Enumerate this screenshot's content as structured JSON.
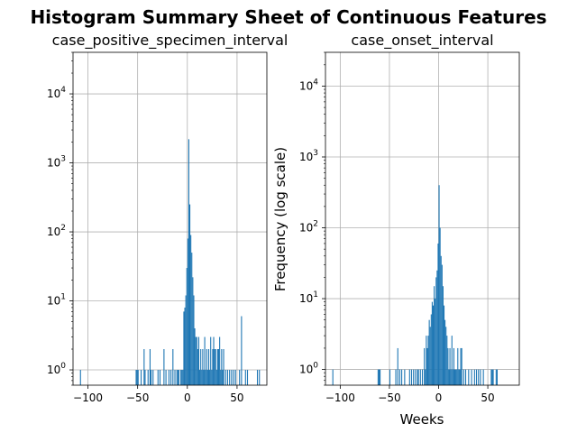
{
  "figure": {
    "suptitle": "Histogram Summary Sheet of Continuous Features",
    "ylabel": "Frequency (log scale)",
    "xlabel": "Weeks"
  },
  "chart_data": [
    {
      "type": "histogram",
      "title": "case_positive_specimen_interval",
      "xlim": [
        -115,
        80
      ],
      "ylim_log": [
        0.6,
        40000
      ],
      "yscale": "log",
      "grid": true,
      "xticks": [
        -100,
        -50,
        0,
        50
      ],
      "yticks": [
        1,
        10,
        100,
        1000,
        10000
      ],
      "bin_width": 1,
      "bars": [
        [
          -108,
          1
        ],
        [
          -52,
          1
        ],
        [
          -51,
          1
        ],
        [
          -50,
          1
        ],
        [
          -47,
          1
        ],
        [
          -44,
          2
        ],
        [
          -43,
          1
        ],
        [
          -40,
          1
        ],
        [
          -38,
          2
        ],
        [
          -37,
          1
        ],
        [
          -35,
          1
        ],
        [
          -30,
          1
        ],
        [
          -28,
          1
        ],
        [
          -24,
          2
        ],
        [
          -22,
          1
        ],
        [
          -19,
          1
        ],
        [
          -17,
          1
        ],
        [
          -15,
          2
        ],
        [
          -13,
          1
        ],
        [
          -11,
          1
        ],
        [
          -10,
          1
        ],
        [
          -9,
          1
        ],
        [
          -7,
          1
        ],
        [
          -6,
          1
        ],
        [
          -5,
          1
        ],
        [
          -4,
          7
        ],
        [
          -3,
          8
        ],
        [
          -2,
          12
        ],
        [
          -1,
          30
        ],
        [
          0,
          80
        ],
        [
          1,
          2200
        ],
        [
          2,
          250
        ],
        [
          3,
          90
        ],
        [
          4,
          50
        ],
        [
          5,
          22
        ],
        [
          6,
          12
        ],
        [
          7,
          4
        ],
        [
          8,
          3
        ],
        [
          9,
          3
        ],
        [
          10,
          2
        ],
        [
          11,
          3
        ],
        [
          12,
          1
        ],
        [
          13,
          2
        ],
        [
          14,
          1
        ],
        [
          15,
          2
        ],
        [
          16,
          1
        ],
        [
          17,
          3
        ],
        [
          18,
          1
        ],
        [
          19,
          2
        ],
        [
          20,
          1
        ],
        [
          21,
          2
        ],
        [
          22,
          1
        ],
        [
          23,
          3
        ],
        [
          24,
          1
        ],
        [
          25,
          2
        ],
        [
          26,
          3
        ],
        [
          27,
          2
        ],
        [
          28,
          2
        ],
        [
          29,
          1
        ],
        [
          30,
          2
        ],
        [
          31,
          2
        ],
        [
          32,
          3
        ],
        [
          33,
          1
        ],
        [
          34,
          2
        ],
        [
          35,
          1
        ],
        [
          36,
          2
        ],
        [
          38,
          1
        ],
        [
          40,
          1
        ],
        [
          42,
          1
        ],
        [
          44,
          1
        ],
        [
          46,
          1
        ],
        [
          48,
          1
        ],
        [
          52,
          1
        ],
        [
          54,
          6
        ],
        [
          58,
          1
        ],
        [
          60,
          1
        ],
        [
          70,
          1
        ],
        [
          72,
          1
        ]
      ]
    },
    {
      "type": "histogram",
      "title": "case_onset_interval",
      "xlim": [
        -115,
        82
      ],
      "ylim_log": [
        0.6,
        30000
      ],
      "yscale": "log",
      "grid": true,
      "xticks": [
        -100,
        -50,
        0,
        50
      ],
      "yticks": [
        1,
        10,
        100,
        1000,
        10000
      ],
      "bin_width": 1,
      "bars": [
        [
          -108,
          1
        ],
        [
          -62,
          1
        ],
        [
          -61,
          1
        ],
        [
          -60,
          1
        ],
        [
          -50,
          1
        ],
        [
          -44,
          1
        ],
        [
          -42,
          2
        ],
        [
          -40,
          1
        ],
        [
          -38,
          1
        ],
        [
          -35,
          1
        ],
        [
          -30,
          1
        ],
        [
          -28,
          1
        ],
        [
          -26,
          1
        ],
        [
          -24,
          1
        ],
        [
          -22,
          1
        ],
        [
          -21,
          1
        ],
        [
          -19,
          1
        ],
        [
          -17,
          1
        ],
        [
          -15,
          2
        ],
        [
          -14,
          1
        ],
        [
          -13,
          3
        ],
        [
          -12,
          2
        ],
        [
          -11,
          3
        ],
        [
          -10,
          5
        ],
        [
          -9,
          4
        ],
        [
          -8,
          6
        ],
        [
          -7,
          9
        ],
        [
          -6,
          8
        ],
        [
          -5,
          15
        ],
        [
          -4,
          10
        ],
        [
          -3,
          20
        ],
        [
          -2,
          25
        ],
        [
          -1,
          60
        ],
        [
          0,
          400
        ],
        [
          1,
          100
        ],
        [
          2,
          40
        ],
        [
          3,
          30
        ],
        [
          4,
          15
        ],
        [
          5,
          8
        ],
        [
          6,
          5
        ],
        [
          7,
          4
        ],
        [
          8,
          3
        ],
        [
          9,
          2
        ],
        [
          10,
          1
        ],
        [
          11,
          2
        ],
        [
          12,
          1
        ],
        [
          13,
          3
        ],
        [
          14,
          1
        ],
        [
          15,
          2
        ],
        [
          16,
          1
        ],
        [
          17,
          1
        ],
        [
          18,
          1
        ],
        [
          19,
          2
        ],
        [
          20,
          1
        ],
        [
          21,
          1
        ],
        [
          22,
          2
        ],
        [
          23,
          2
        ],
        [
          25,
          1
        ],
        [
          27,
          1
        ],
        [
          30,
          1
        ],
        [
          33,
          1
        ],
        [
          36,
          1
        ],
        [
          38,
          1
        ],
        [
          40,
          1
        ],
        [
          42,
          1
        ],
        [
          45,
          1
        ],
        [
          53,
          1
        ],
        [
          54,
          1
        ],
        [
          55,
          1
        ],
        [
          58,
          1
        ],
        [
          59,
          1
        ]
      ]
    }
  ]
}
